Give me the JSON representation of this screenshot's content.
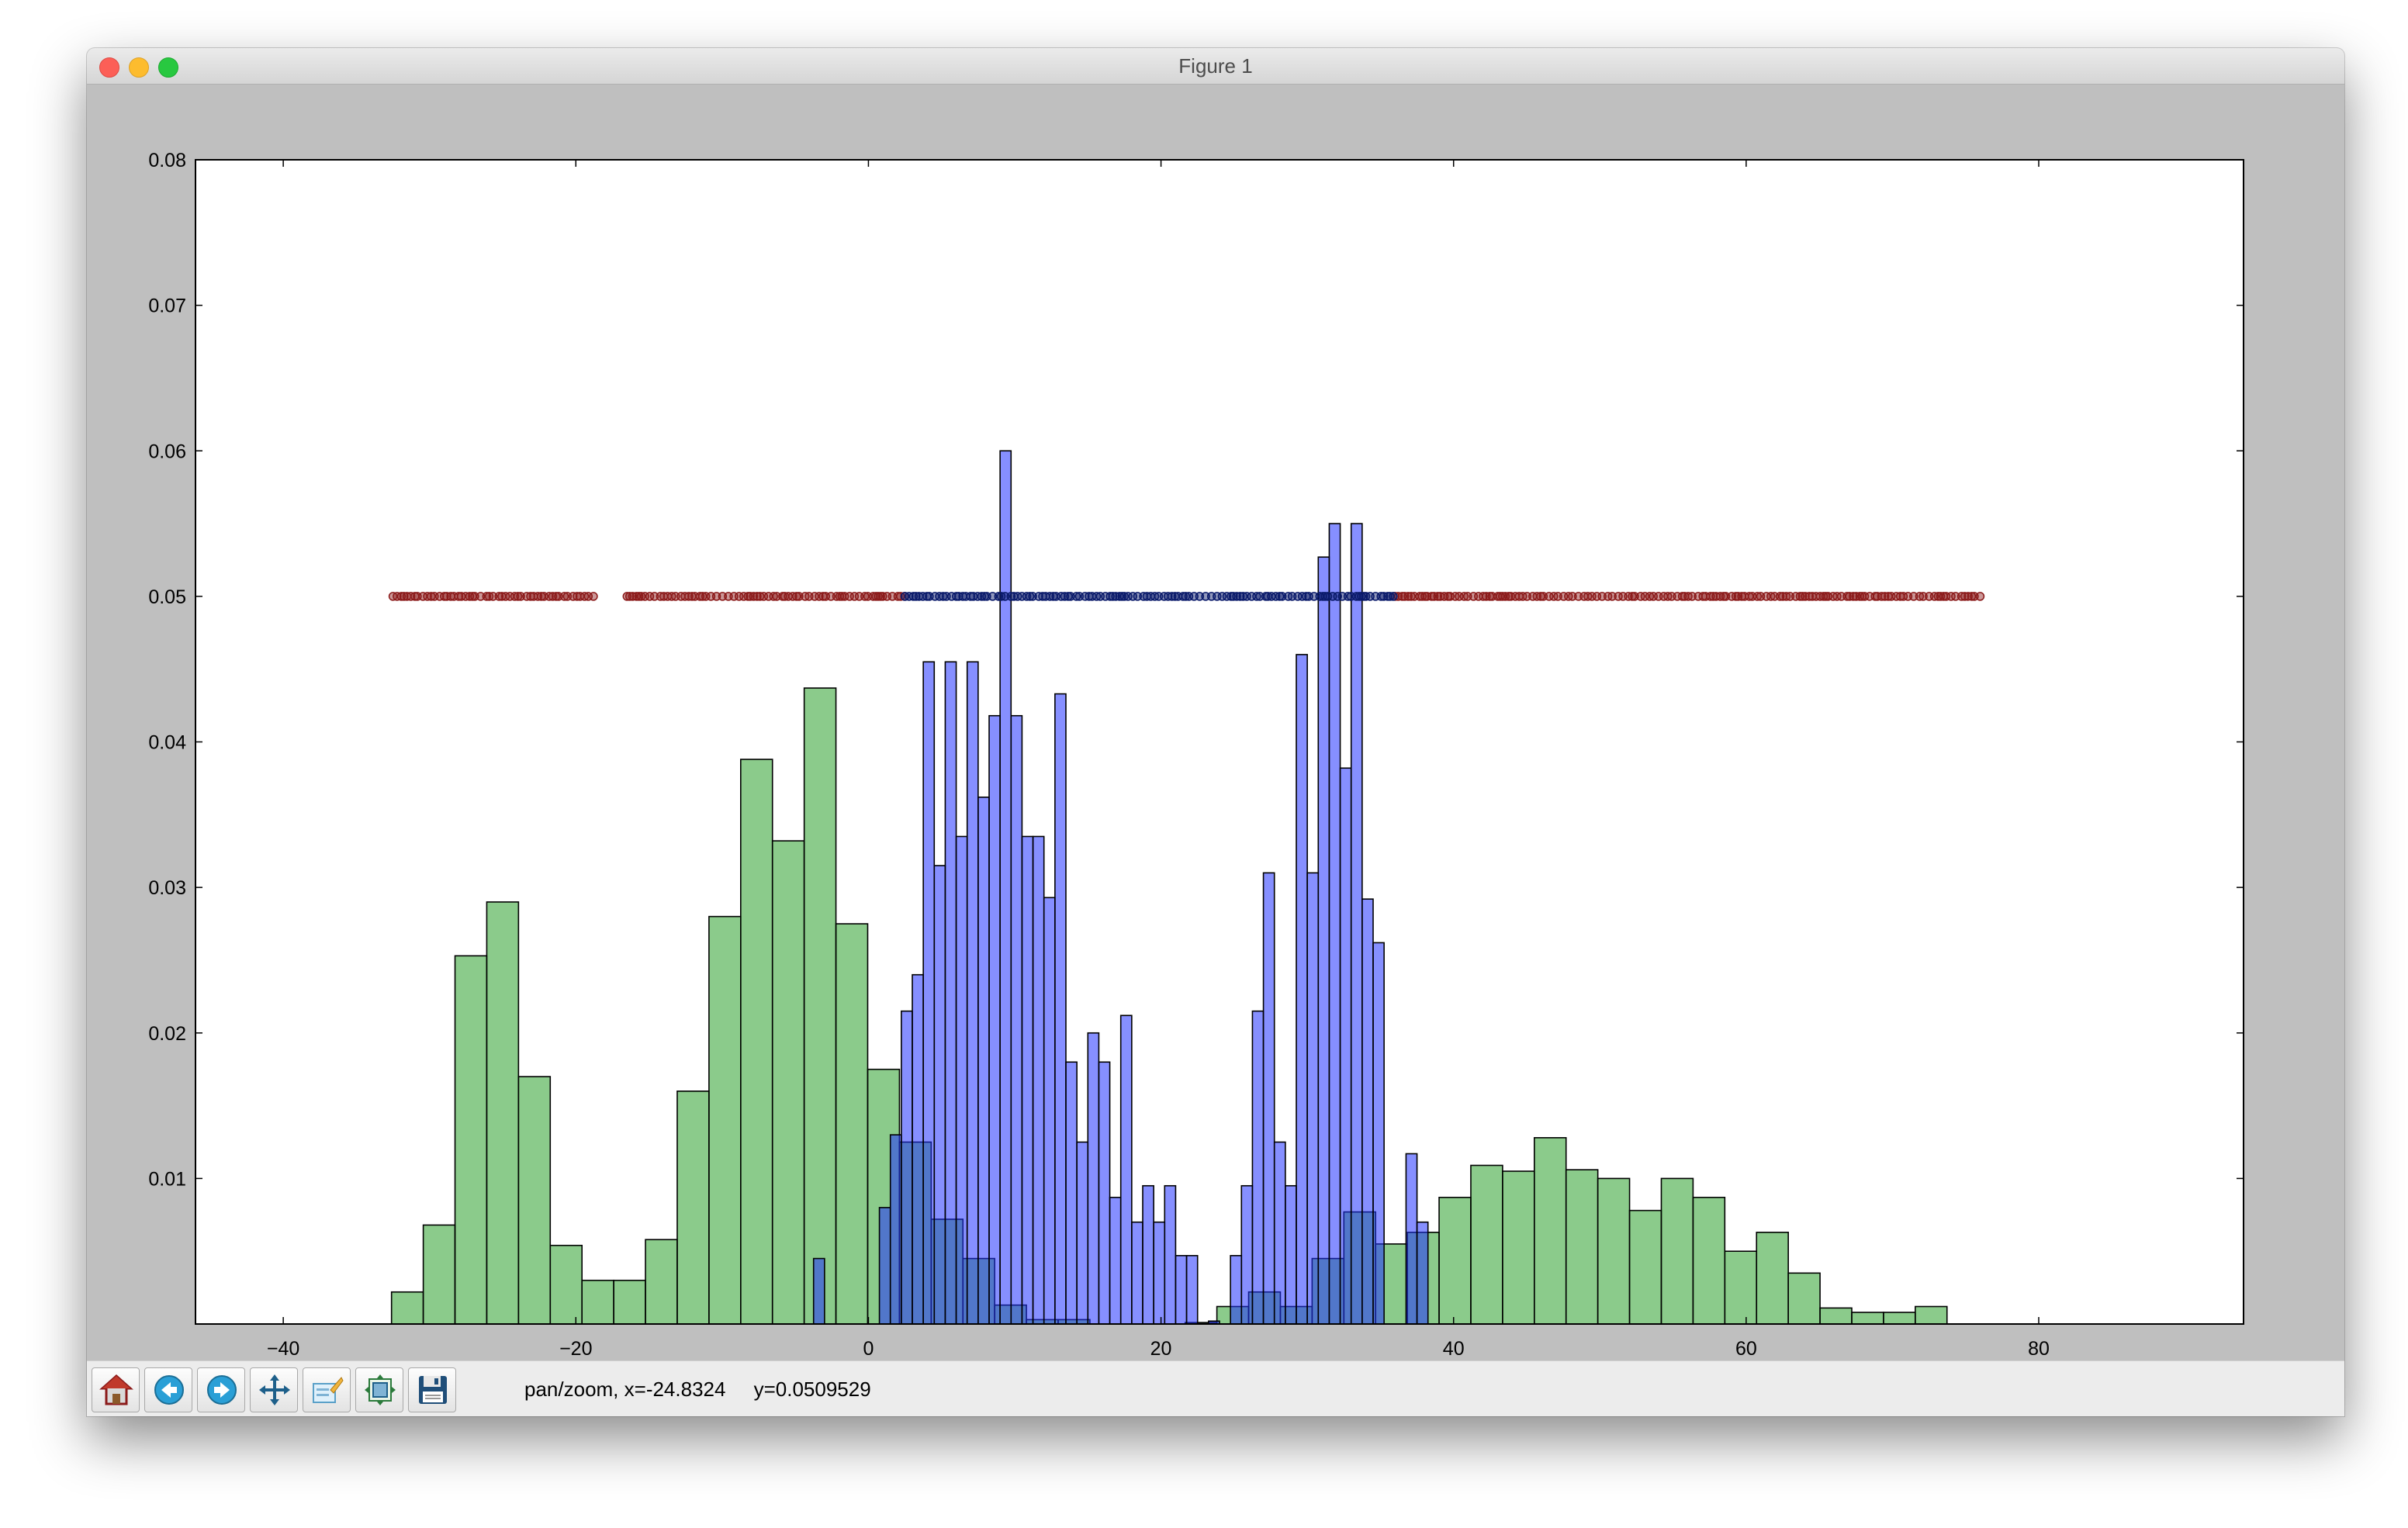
{
  "window": {
    "title": "Figure 1"
  },
  "toolbar": {
    "buttons": [
      {
        "name": "home-button",
        "icon": "home-icon"
      },
      {
        "name": "back-button",
        "icon": "back-arrow-icon"
      },
      {
        "name": "forward-button",
        "icon": "forward-arrow-icon"
      },
      {
        "name": "pan-button",
        "icon": "pan-arrows-icon"
      },
      {
        "name": "zoom-button",
        "icon": "zoom-rect-icon"
      },
      {
        "name": "configure-subplots-button",
        "icon": "subplots-icon"
      },
      {
        "name": "save-button",
        "icon": "floppy-disk-icon"
      }
    ],
    "status_mode": "pan/zoom, x=-24.8324",
    "status_y": "y=0.0509529"
  },
  "chart_data": {
    "type": "bar",
    "title": "",
    "xlabel": "",
    "ylabel": "",
    "xlim": [
      -46,
      94
    ],
    "ylim": [
      0,
      0.08
    ],
    "xticks": [
      -40,
      -20,
      0,
      20,
      40,
      60,
      80
    ],
    "yticks": [
      0.01,
      0.02,
      0.03,
      0.04,
      0.05,
      0.06,
      0.07,
      0.08
    ],
    "xtick_labels": [
      "−40",
      "−20",
      "0",
      "20",
      "40",
      "60",
      "80"
    ],
    "ytick_labels": [
      "0.01",
      "0.02",
      "0.03",
      "0.04",
      "0.05",
      "0.06",
      "0.07",
      "0.08"
    ],
    "colors": {
      "green": "#2ca02c",
      "blue": "#2233ff",
      "red_points": "#8b1a1a",
      "blue_points": "#0a1a6a"
    },
    "series": [
      {
        "name": "green histogram",
        "bin_start": -32.6,
        "bin_width": 2.17,
        "values": [
          0.0022,
          0.0068,
          0.0253,
          0.029,
          0.017,
          0.0054,
          0.003,
          0.003,
          0.0058,
          0.016,
          0.028,
          0.0388,
          0.0332,
          0.0437,
          0.0275,
          0.0175,
          0.0125,
          0.0072,
          0.0045,
          0.0013,
          0.0003,
          0.0003,
          0.0,
          0.0,
          0.0,
          0.0001,
          0.0012,
          0.0022,
          0.0012,
          0.0045,
          0.0077,
          0.0055,
          0.0063,
          0.0087,
          0.0109,
          0.0105,
          0.0128,
          0.0106,
          0.01,
          0.0078,
          0.01,
          0.0087,
          0.005,
          0.0063,
          0.0035,
          0.0011,
          0.0008,
          0.0008,
          0.0012
        ]
      },
      {
        "name": "blue histogram",
        "bin_start": -3.75,
        "bin_width": 0.75,
        "values": [
          0.0045,
          0.0,
          0.0,
          0.0,
          0.0,
          0.0,
          0.008,
          0.013,
          0.0215,
          0.024,
          0.0455,
          0.0315,
          0.0455,
          0.0335,
          0.0455,
          0.0362,
          0.0418,
          0.06,
          0.0418,
          0.0335,
          0.0335,
          0.0293,
          0.0433,
          0.018,
          0.0125,
          0.02,
          0.018,
          0.0087,
          0.0212,
          0.007,
          0.0095,
          0.007,
          0.0095,
          0.0047,
          0.0047,
          0.0,
          0.0002,
          0.0,
          0.0047,
          0.0095,
          0.0215,
          0.031,
          0.0125,
          0.0095,
          0.046,
          0.031,
          0.0527,
          0.055,
          0.0382,
          0.055,
          0.0292,
          0.0262,
          0.0,
          0.0,
          0.0117,
          0.007
        ]
      }
    ],
    "scatter": {
      "y": 0.05,
      "red_x_segments": [
        [
          -32.5,
          -18.5
        ],
        [
          -16.5,
          2.5
        ],
        [
          36,
          76
        ]
      ],
      "blue_x_segments": [
        [
          2.5,
          36
        ]
      ]
    }
  }
}
